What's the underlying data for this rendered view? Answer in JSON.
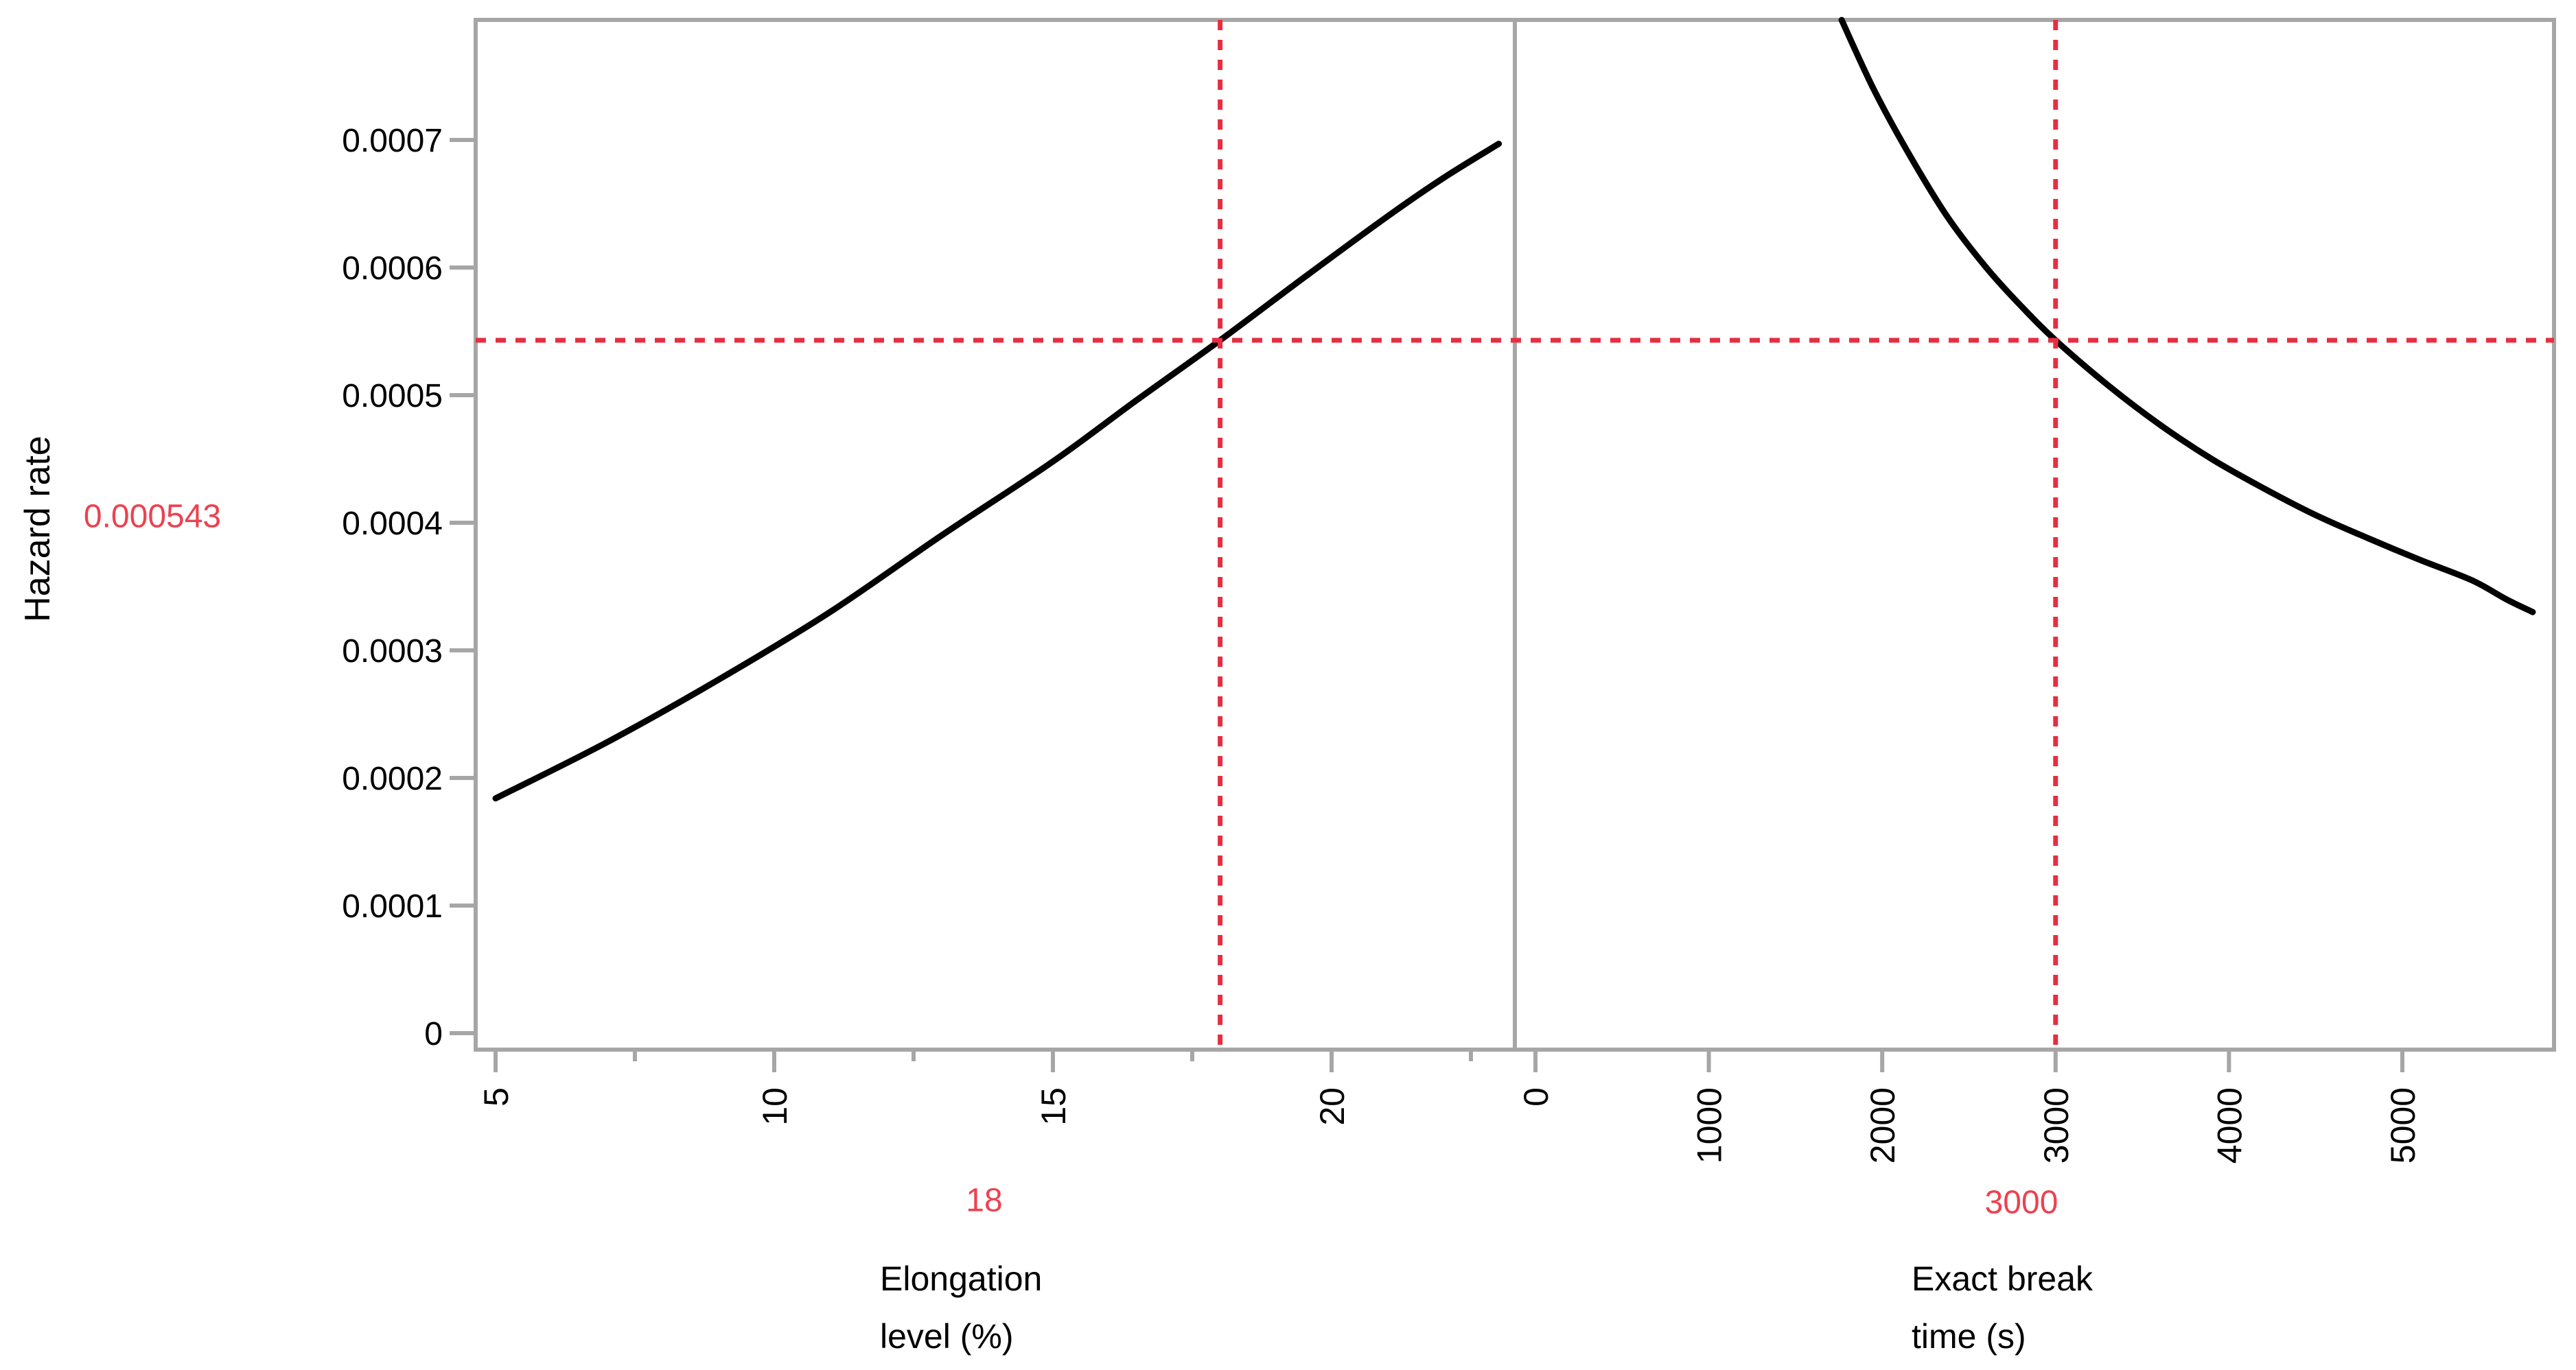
{
  "chart_data": {
    "type": "line",
    "title": "",
    "description": "Two-panel hazard profiler: hazard rate vs two factors, with red dotted crosshairs marking current settings",
    "ylabel": "Hazard rate",
    "legend": "none",
    "grid": "off",
    "y_axis": {
      "min": -1.3e-05,
      "max": 0.000794,
      "ticks": [
        0,
        0.0001,
        0.0002,
        0.0003,
        0.0004,
        0.0005,
        0.0006,
        0.0007
      ],
      "tick_labels": [
        "0",
        "0.0001",
        "0.0002",
        "0.0003",
        "0.0004",
        "0.0005",
        "0.0006",
        "0.0007"
      ],
      "current_value_label": "0.000543",
      "current_value": 0.000543
    },
    "crosshair_y": 0.000543,
    "panels": [
      {
        "xlabel_lines": [
          "Elongation",
          "level (%)"
        ],
        "x_min": 4.64,
        "x_max": 23.29,
        "x_ticks": [
          5,
          10,
          15,
          20
        ],
        "x_tick_labels": [
          "5",
          "10",
          "15",
          "20"
        ],
        "x_minor_ticks": [
          7.5,
          12.5,
          17.5,
          22.5
        ],
        "current_value_label": "18",
        "current_x": 18,
        "curve_points": [
          [
            5,
            0.000184
          ],
          [
            7,
            0.000228
          ],
          [
            9,
            0.000277
          ],
          [
            11,
            0.00033
          ],
          [
            13,
            0.00039
          ],
          [
            15,
            0.000448
          ],
          [
            16.5,
            0.000496
          ],
          [
            18,
            0.000543
          ],
          [
            19.5,
            0.000592
          ],
          [
            21,
            0.00064
          ],
          [
            22,
            0.00067
          ],
          [
            23,
            0.000697
          ]
        ]
      },
      {
        "xlabel_lines": [
          "Exact break",
          "time (s)"
        ],
        "x_min": -119,
        "x_max": 5874,
        "x_ticks": [
          0,
          1000,
          2000,
          3000,
          4000,
          5000
        ],
        "x_tick_labels": [
          "0",
          "1000",
          "2000",
          "3000",
          "4000",
          "5000"
        ],
        "x_minor_ticks": [],
        "current_value_label": "3000",
        "current_x": 3000,
        "curve_points": [
          [
            1766,
            0.000794
          ],
          [
            1950,
            0.00074
          ],
          [
            2150,
            0.00069
          ],
          [
            2375,
            0.00064
          ],
          [
            2600,
            0.0006
          ],
          [
            2800,
            0.00057
          ],
          [
            3000,
            0.000543
          ],
          [
            3300,
            0.000508
          ],
          [
            3600,
            0.000477
          ],
          [
            3900,
            0.00045
          ],
          [
            4200,
            0.000427
          ],
          [
            4500,
            0.000406
          ],
          [
            4800,
            0.000388
          ],
          [
            5100,
            0.000371
          ],
          [
            5400,
            0.000355
          ],
          [
            5600,
            0.00034
          ],
          [
            5752,
            0.00033
          ]
        ]
      }
    ],
    "colors": {
      "crosshair_red": "#e62e40",
      "red_value_text": "#ec4250",
      "frame_gray": "#a6a6a6",
      "curve_black": "#000000",
      "background": "#ffffff"
    }
  }
}
